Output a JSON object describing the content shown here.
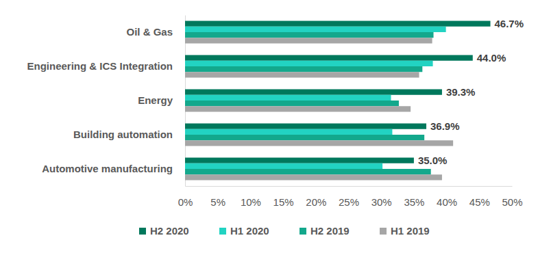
{
  "chart_data": {
    "type": "bar",
    "orientation": "horizontal",
    "categories": [
      "Oil & Gas",
      "Engineering & ICS Integration",
      "Energy",
      "Building automation",
      "Automotive manufacturing"
    ],
    "series": [
      {
        "name": "H2 2020",
        "color": "#00785c",
        "values": [
          46.7,
          44.0,
          39.3,
          36.9,
          35.0
        ],
        "value_labels": [
          "46.7%",
          "44.0%",
          "39.3%",
          "36.9%",
          "35.0%"
        ]
      },
      {
        "name": "H1 2020",
        "color": "#22d3c2",
        "values": [
          39.9,
          37.9,
          31.5,
          31.7,
          30.2
        ]
      },
      {
        "name": "H2 2019",
        "color": "#13a88c",
        "values": [
          38.0,
          36.3,
          32.7,
          36.6,
          37.6
        ]
      },
      {
        "name": "H1 2019",
        "color": "#a6a6a6",
        "values": [
          37.8,
          35.8,
          34.5,
          41.0,
          39.3
        ]
      }
    ],
    "xlim": [
      0,
      50
    ],
    "xticks": [
      {
        "value": 0,
        "label": "0%"
      },
      {
        "value": 5,
        "label": "5%"
      },
      {
        "value": 10,
        "label": "10%"
      },
      {
        "value": 15,
        "label": "15%"
      },
      {
        "value": 20,
        "label": "20%"
      },
      {
        "value": 25,
        "label": "25%"
      },
      {
        "value": 30,
        "label": "30%"
      },
      {
        "value": 35,
        "label": "35%"
      },
      {
        "value": 40,
        "label": "40%"
      },
      {
        "value": 45,
        "label": "45%"
      },
      {
        "value": 50,
        "label": "50%"
      }
    ],
    "grid": false,
    "legend": "bottom",
    "data_labels": true
  }
}
